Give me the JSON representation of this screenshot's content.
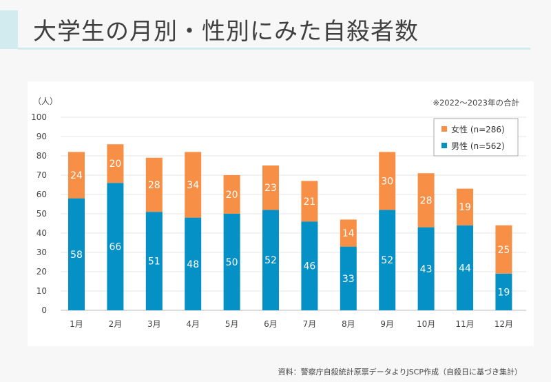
{
  "title": "大学生の月別・性別にみた自殺者数",
  "source": "資料：警察庁自殺統計原票データよりJSCP作成（自殺日に基づき集計）",
  "chart_data": {
    "type": "bar",
    "stacked": true,
    "note": "※2022〜2023年の合計",
    "ylabel": "（人）",
    "ylim": [
      0,
      100
    ],
    "yticks": [
      0,
      10,
      20,
      30,
      40,
      50,
      60,
      70,
      80,
      90,
      100
    ],
    "categories": [
      "1月",
      "2月",
      "3月",
      "4月",
      "5月",
      "6月",
      "7月",
      "8月",
      "9月",
      "10月",
      "11月",
      "12月"
    ],
    "series": [
      {
        "name": "男性 (n=562)",
        "color": "#0590c6",
        "values": [
          58,
          66,
          51,
          48,
          50,
          52,
          46,
          33,
          52,
          43,
          44,
          19
        ]
      },
      {
        "name": "女性 (n=286)",
        "color": "#f79046",
        "values": [
          24,
          20,
          28,
          34,
          20,
          23,
          21,
          14,
          30,
          28,
          19,
          25
        ]
      }
    ],
    "legend_position": "top-right"
  }
}
